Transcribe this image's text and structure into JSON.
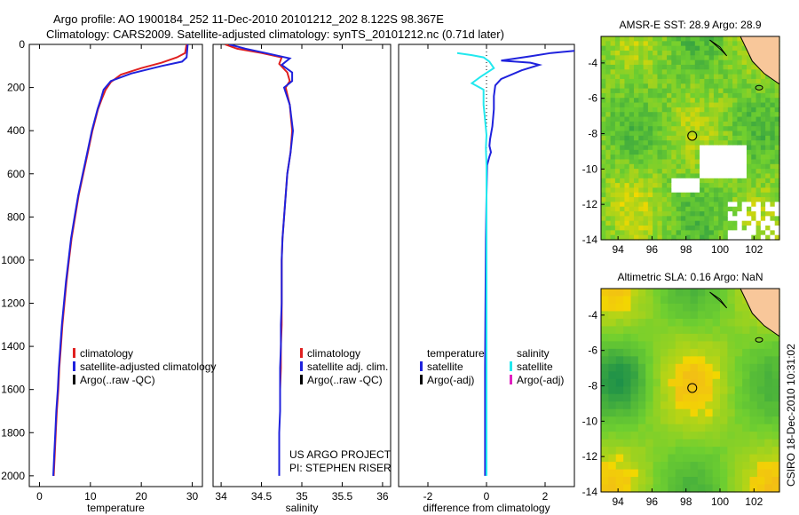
{
  "figure": {
    "title_line1": "Argo profile: AO 1900184_252 11-Dec-2010 20101212_202 8.122S 98.367E",
    "title_line2": "Climatology: CARS2009. Satellite-adjusted climatology: synTS_20101212.nc (0.71d later)",
    "side_label": "CSIRO 18-Dec-2010 10:31:02",
    "project_line1": "US ARGO PROJECT",
    "project_line2": "PI: STEPHEN RISER"
  },
  "colors": {
    "climatology": "#e02020",
    "satellite": "#1f22dd",
    "argo": "#000000",
    "salinity_satellite": "#22e8ee",
    "salinity_argo": "#e020c0",
    "map_green": "#2fb33a",
    "map_yellow": "#f2d800",
    "land": "#f8c79a"
  },
  "chart_data": [
    {
      "type": "line",
      "id": "temperature",
      "xlabel": "temperature",
      "ylabel": "",
      "xlim": [
        -2,
        32
      ],
      "ylim": [
        2050,
        0
      ],
      "xticks": [
        0,
        10,
        20,
        30
      ],
      "yticks": [
        0,
        200,
        400,
        600,
        800,
        1000,
        1200,
        1400,
        1600,
        1800,
        2000
      ],
      "legend": [
        "climatology",
        "satellite-adjusted climatology",
        "Argo(..raw -QC)"
      ],
      "series": [
        {
          "name": "climatology",
          "color_key": "climatology",
          "points": [
            [
              28.9,
              0
            ],
            [
              28.6,
              40
            ],
            [
              27,
              60
            ],
            [
              24,
              85
            ],
            [
              20,
              110
            ],
            [
              16,
              140
            ],
            [
              14,
              175
            ],
            [
              13,
              210
            ],
            [
              12.3,
              250
            ],
            [
              11.5,
              300
            ],
            [
              10.4,
              400
            ],
            [
              9.5,
              500
            ],
            [
              8.6,
              600
            ],
            [
              7.7,
              700
            ],
            [
              7,
              800
            ],
            [
              6.3,
              900
            ],
            [
              5.8,
              1000
            ],
            [
              5.3,
              1100
            ],
            [
              4.9,
              1200
            ],
            [
              4.5,
              1300
            ],
            [
              4.2,
              1400
            ],
            [
              3.9,
              1500
            ],
            [
              3.7,
              1600
            ],
            [
              3.4,
              1700
            ],
            [
              3.2,
              1800
            ],
            [
              3,
              1900
            ],
            [
              2.8,
              2000
            ]
          ]
        },
        {
          "name": "satellite-adjusted climatology",
          "color_key": "satellite",
          "points": [
            [
              29.1,
              0
            ],
            [
              29,
              30
            ],
            [
              28.9,
              60
            ],
            [
              28,
              80
            ],
            [
              24,
              100
            ],
            [
              18,
              135
            ],
            [
              14,
              170
            ],
            [
              12.6,
              210
            ],
            [
              12.1,
              250
            ],
            [
              11.4,
              300
            ],
            [
              10.3,
              400
            ],
            [
              9.4,
              500
            ],
            [
              8.5,
              600
            ],
            [
              7.6,
              700
            ],
            [
              6.9,
              800
            ],
            [
              6.2,
              900
            ],
            [
              5.7,
              1000
            ],
            [
              5.2,
              1100
            ],
            [
              4.8,
              1200
            ],
            [
              4.4,
              1300
            ],
            [
              4.1,
              1400
            ],
            [
              3.8,
              1500
            ],
            [
              3.6,
              1600
            ],
            [
              3.3,
              1700
            ],
            [
              3.1,
              1800
            ],
            [
              2.9,
              1900
            ],
            [
              2.7,
              2000
            ]
          ]
        }
      ]
    },
    {
      "type": "line",
      "id": "salinity",
      "xlabel": "salinity",
      "ylabel": "",
      "xlim": [
        33.9,
        36.1
      ],
      "ylim": [
        2050,
        0
      ],
      "xticks": [
        34,
        34.5,
        35,
        35.5,
        36
      ],
      "yticks": [],
      "legend": [
        "climatology",
        "satellite adj. clim.",
        "Argo(..raw -QC)"
      ],
      "series": [
        {
          "name": "climatology",
          "color_key": "climatology",
          "points": [
            [
              34.05,
              0
            ],
            [
              34.2,
              20
            ],
            [
              34.5,
              40
            ],
            [
              34.75,
              60
            ],
            [
              34.72,
              90
            ],
            [
              34.82,
              130
            ],
            [
              34.85,
              170
            ],
            [
              34.8,
              200
            ],
            [
              34.85,
              280
            ],
            [
              34.88,
              400
            ],
            [
              34.86,
              500
            ],
            [
              34.82,
              600
            ],
            [
              34.8,
              700
            ],
            [
              34.78,
              800
            ],
            [
              34.76,
              900
            ],
            [
              34.75,
              1000
            ],
            [
              34.75,
              1100
            ],
            [
              34.75,
              1200
            ],
            [
              34.75,
              1300
            ],
            [
              34.74,
              1400
            ],
            [
              34.74,
              1500
            ],
            [
              34.73,
              1600
            ],
            [
              34.73,
              1700
            ]
          ]
        },
        {
          "name": "satellite adj. clim.",
          "color_key": "satellite",
          "points": [
            [
              34.1,
              0
            ],
            [
              34.3,
              20
            ],
            [
              34.55,
              40
            ],
            [
              34.85,
              65
            ],
            [
              34.75,
              95
            ],
            [
              34.88,
              130
            ],
            [
              34.88,
              170
            ],
            [
              34.78,
              200
            ],
            [
              34.85,
              280
            ],
            [
              34.89,
              400
            ],
            [
              34.86,
              500
            ],
            [
              34.82,
              600
            ],
            [
              34.8,
              700
            ],
            [
              34.78,
              800
            ],
            [
              34.76,
              900
            ],
            [
              34.75,
              1000
            ],
            [
              34.75,
              1100
            ],
            [
              34.75,
              1200
            ],
            [
              34.74,
              1300
            ],
            [
              34.74,
              1400
            ],
            [
              34.73,
              1500
            ],
            [
              34.73,
              1600
            ],
            [
              34.73,
              1700
            ],
            [
              34.72,
              1800
            ],
            [
              34.72,
              1900
            ],
            [
              34.72,
              2000
            ]
          ]
        }
      ]
    },
    {
      "type": "line",
      "id": "difference",
      "xlabel": "difference from climatology",
      "ylabel": "",
      "xlim": [
        -3,
        3
      ],
      "ylim": [
        2050,
        0
      ],
      "xticks": [
        -2,
        0,
        2
      ],
      "yticks": [],
      "legend_temperature": {
        "header": "temperature",
        "items": [
          "satellite",
          "Argo(-adj)"
        ]
      },
      "legend_salinity": {
        "header": "salinity",
        "items": [
          "satellite",
          "Argo(-adj)"
        ]
      },
      "series": [
        {
          "name": "temperature satellite",
          "color_key": "satellite",
          "points": [
            [
              3,
              30
            ],
            [
              2.2,
              40
            ],
            [
              1.5,
              55
            ],
            [
              0.5,
              75
            ],
            [
              1.5,
              85
            ],
            [
              1.8,
              95
            ],
            [
              1.2,
              120
            ],
            [
              0.5,
              160
            ],
            [
              0.3,
              190
            ],
            [
              0.25,
              240
            ],
            [
              0.25,
              300
            ],
            [
              0.2,
              380
            ],
            [
              0.12,
              440
            ],
            [
              0.1,
              470
            ],
            [
              0.15,
              500
            ],
            [
              0.1,
              520
            ],
            [
              0.02,
              560
            ],
            [
              0,
              700
            ],
            [
              -0.02,
              900
            ],
            [
              -0.03,
              1100
            ],
            [
              -0.04,
              1300
            ],
            [
              -0.05,
              1500
            ],
            [
              -0.05,
              1700
            ],
            [
              -0.05,
              1900
            ],
            [
              -0.05,
              2000
            ]
          ]
        },
        {
          "name": "salinity satellite",
          "color_key": "salinity_satellite",
          "points": [
            [
              -1,
              40
            ],
            [
              -0.5,
              50
            ],
            [
              -0.1,
              60
            ],
            [
              0.1,
              80
            ],
            [
              0.25,
              110
            ],
            [
              -0.2,
              150
            ],
            [
              -0.5,
              180
            ],
            [
              -0.1,
              210
            ],
            [
              -0.1,
              280
            ],
            [
              -0.05,
              350
            ],
            [
              0,
              420
            ],
            [
              -0.02,
              480
            ],
            [
              0,
              560
            ],
            [
              0,
              700
            ],
            [
              0,
              900
            ],
            [
              0,
              1100
            ],
            [
              0,
              1300
            ],
            [
              0,
              1500
            ],
            [
              0,
              1700
            ],
            [
              0,
              1900
            ],
            [
              0,
              2000
            ]
          ]
        }
      ]
    },
    {
      "type": "heatmap",
      "id": "sst_map",
      "title": "AMSR-E SST: 28.9 Argo: 28.9",
      "xlim": [
        93,
        103.5
      ],
      "ylim": [
        -14,
        -2.5
      ],
      "xticks": [
        94,
        96,
        98,
        100,
        102
      ],
      "yticks": [
        -4,
        -6,
        -8,
        -10,
        -12,
        -14
      ],
      "marker": [
        98.367,
        -8.122
      ]
    },
    {
      "type": "heatmap",
      "id": "sla_map",
      "title": "Altimetric SLA: 0.16 Argo: NaN",
      "xlim": [
        93,
        103.5
      ],
      "ylim": [
        -14,
        -2.5
      ],
      "xticks": [
        94,
        96,
        98,
        100,
        102
      ],
      "yticks": [
        -4,
        -6,
        -8,
        -10,
        -12,
        -14
      ],
      "marker": [
        98.367,
        -8.122
      ]
    }
  ]
}
